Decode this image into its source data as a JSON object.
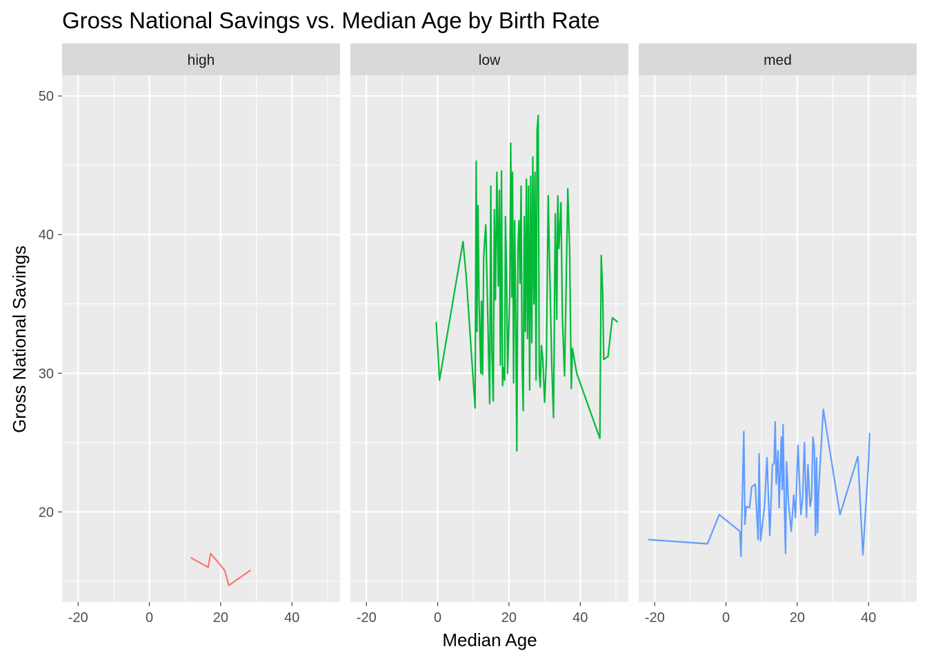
{
  "chart_data": {
    "type": "line",
    "title": "Gross National Savings vs. Median Age by Birth Rate",
    "xlabel": "Median Age",
    "ylabel": "Gross National Savings",
    "xlim": [
      -24.5,
      53.5
    ],
    "ylim": [
      13.5,
      51.5
    ],
    "x_ticks": [
      -20,
      0,
      20,
      40
    ],
    "y_ticks": [
      20,
      30,
      40,
      50
    ],
    "grid": true,
    "facet_by": "birth rate",
    "panels": [
      {
        "label": "high",
        "color": "#F8766D",
        "points": [
          [
            11.6,
            16.7
          ],
          [
            16.5,
            16.0
          ],
          [
            17.2,
            17.0
          ],
          [
            21.1,
            15.8
          ],
          [
            22.3,
            14.7
          ],
          [
            28.4,
            15.8
          ]
        ]
      },
      {
        "label": "low",
        "color": "#00BA38",
        "points": [
          [
            -0.4,
            33.7
          ],
          [
            0.5,
            29.5
          ],
          [
            7.1,
            39.5
          ],
          [
            8.0,
            37.0
          ],
          [
            10.5,
            27.5
          ],
          [
            10.8,
            45.3
          ],
          [
            11.0,
            33.0
          ],
          [
            11.3,
            42.1
          ],
          [
            11.6,
            35.4
          ],
          [
            11.8,
            33.2
          ],
          [
            12.1,
            30.0
          ],
          [
            12.3,
            35.2
          ],
          [
            12.6,
            29.9
          ],
          [
            12.9,
            38.2
          ],
          [
            13.2,
            39.7
          ],
          [
            13.5,
            40.7
          ],
          [
            13.8,
            37.0
          ],
          [
            14.6,
            27.8
          ],
          [
            14.9,
            43.5
          ],
          [
            15.2,
            31.7
          ],
          [
            15.6,
            28.0
          ],
          [
            15.9,
            41.8
          ],
          [
            16.2,
            35.3
          ],
          [
            16.6,
            44.5
          ],
          [
            17.0,
            36.3
          ],
          [
            17.3,
            43.2
          ],
          [
            17.6,
            30.6
          ],
          [
            17.9,
            44.6
          ],
          [
            18.2,
            29.1
          ],
          [
            18.5,
            30.4
          ],
          [
            18.8,
            29.5
          ],
          [
            19.0,
            41.3
          ],
          [
            19.3,
            37.5
          ],
          [
            19.6,
            30.0
          ],
          [
            19.9,
            32.5
          ],
          [
            20.2,
            35.8
          ],
          [
            20.5,
            46.6
          ],
          [
            20.8,
            35.5
          ],
          [
            21.0,
            44.5
          ],
          [
            21.3,
            29.3
          ],
          [
            21.6,
            41.0
          ],
          [
            21.9,
            34.0
          ],
          [
            22.2,
            24.4
          ],
          [
            22.5,
            38.8
          ],
          [
            22.8,
            41.0
          ],
          [
            23.1,
            36.5
          ],
          [
            23.4,
            43.5
          ],
          [
            23.7,
            30.7
          ],
          [
            24.0,
            27.3
          ],
          [
            24.3,
            41.3
          ],
          [
            24.6,
            33.0
          ],
          [
            24.9,
            44.0
          ],
          [
            25.2,
            32.5
          ],
          [
            25.5,
            43.5
          ],
          [
            25.8,
            28.8
          ],
          [
            26.1,
            44.2
          ],
          [
            26.4,
            32.2
          ],
          [
            26.7,
            45.6
          ],
          [
            27.0,
            35.0
          ],
          [
            27.3,
            44.5
          ],
          [
            27.6,
            29.5
          ],
          [
            27.9,
            47.5
          ],
          [
            28.2,
            48.6
          ],
          [
            28.5,
            30.0
          ],
          [
            28.8,
            29.0
          ],
          [
            29.1,
            32.0
          ],
          [
            29.5,
            31.0
          ],
          [
            30.0,
            27.9
          ],
          [
            30.5,
            31.0
          ],
          [
            31.0,
            42.8
          ],
          [
            32.0,
            30.7
          ],
          [
            32.5,
            26.8
          ],
          [
            33.0,
            41.5
          ],
          [
            33.4,
            33.9
          ],
          [
            33.7,
            42.8
          ],
          [
            34.0,
            39.0
          ],
          [
            34.3,
            40.5
          ],
          [
            34.6,
            42.3
          ],
          [
            35.0,
            34.0
          ],
          [
            35.6,
            29.8
          ],
          [
            36.5,
            43.3
          ],
          [
            37.0,
            39.0
          ],
          [
            37.5,
            28.9
          ],
          [
            37.8,
            31.8
          ],
          [
            39.0,
            30.0
          ],
          [
            45.5,
            25.3
          ],
          [
            45.9,
            38.5
          ],
          [
            46.3,
            35.8
          ],
          [
            46.6,
            31.0
          ],
          [
            47.8,
            31.2
          ],
          [
            49.0,
            34.0
          ],
          [
            50.5,
            33.7
          ]
        ]
      },
      {
        "label": "med",
        "color": "#619CFF",
        "points": [
          [
            -21.8,
            18.0
          ],
          [
            -5.2,
            17.7
          ],
          [
            -1.9,
            19.8
          ],
          [
            3.9,
            18.6
          ],
          [
            4.2,
            16.8
          ],
          [
            5.0,
            25.8
          ],
          [
            5.3,
            19.1
          ],
          [
            5.7,
            20.4
          ],
          [
            6.6,
            20.3
          ],
          [
            7.2,
            21.8
          ],
          [
            8.2,
            22.0
          ],
          [
            9.0,
            18.0
          ],
          [
            9.3,
            24.2
          ],
          [
            9.7,
            17.9
          ],
          [
            10.8,
            20.4
          ],
          [
            11.5,
            23.9
          ],
          [
            12.3,
            18.3
          ],
          [
            13.0,
            23.4
          ],
          [
            13.5,
            23.5
          ],
          [
            13.8,
            26.5
          ],
          [
            14.1,
            22.0
          ],
          [
            14.6,
            24.4
          ],
          [
            14.9,
            20.3
          ],
          [
            15.5,
            25.4
          ],
          [
            15.8,
            21.6
          ],
          [
            16.0,
            26.3
          ],
          [
            16.4,
            20.3
          ],
          [
            16.7,
            17.0
          ],
          [
            17.0,
            23.6
          ],
          [
            17.5,
            20.8
          ],
          [
            18.3,
            18.6
          ],
          [
            19.0,
            21.2
          ],
          [
            19.5,
            19.6
          ],
          [
            20.2,
            24.8
          ],
          [
            21.0,
            19.8
          ],
          [
            21.5,
            21.0
          ],
          [
            22.0,
            25.0
          ],
          [
            22.6,
            19.6
          ],
          [
            23.0,
            23.4
          ],
          [
            23.6,
            20.4
          ],
          [
            24.0,
            21.0
          ],
          [
            24.4,
            25.4
          ],
          [
            24.8,
            24.5
          ],
          [
            25.1,
            18.3
          ],
          [
            25.4,
            23.9
          ],
          [
            25.7,
            18.5
          ],
          [
            26.0,
            21.5
          ],
          [
            27.3,
            27.4
          ],
          [
            32.0,
            19.8
          ],
          [
            37.0,
            24.0
          ],
          [
            38.4,
            16.9
          ],
          [
            40.0,
            23.6
          ],
          [
            40.3,
            25.7
          ]
        ]
      }
    ]
  }
}
